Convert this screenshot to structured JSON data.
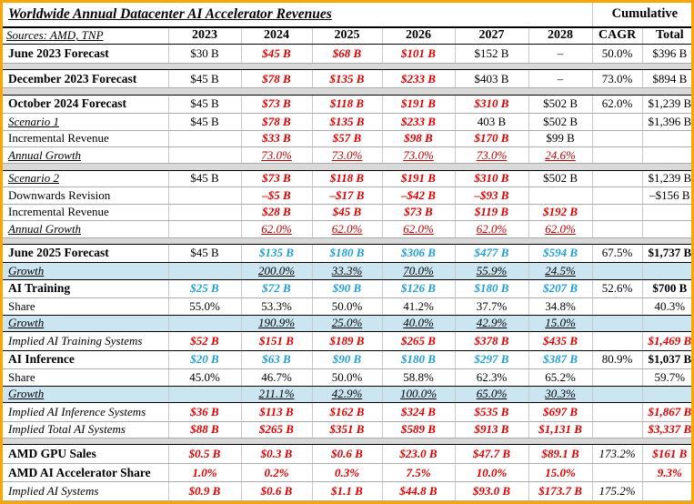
{
  "title": "Worldwide Annual Datacenter AI Accelerator Revenues",
  "cumulative_label": "Cumulative",
  "sources_label": "Sources: AMD, TNP",
  "columns": [
    "2023",
    "2024",
    "2025",
    "2026",
    "2027",
    "2028",
    "CAGR",
    "Total"
  ],
  "colors": {
    "frame_orange": "#F9A602",
    "red_value": "#DD0000",
    "dark_red_growth": "#C00000",
    "blue_value": "#219FD7",
    "blue_row_bg": "#CBE5F1",
    "separator_bg": "#D9D9D9"
  },
  "rows": [
    {
      "label": "June 2023 Forecast",
      "ls": "b",
      "cls": "big",
      "cells": [
        {
          "t": "$30 B",
          "s": "k"
        },
        {
          "t": "$45 B",
          "s": "r"
        },
        {
          "t": "$68 B",
          "s": "r"
        },
        {
          "t": "$101 B",
          "s": "r"
        },
        {
          "t": "$152 B",
          "s": "k"
        },
        {
          "t": "–",
          "s": "k"
        },
        {
          "t": "50.0%",
          "s": "k"
        },
        {
          "t": "$396 B",
          "s": "k"
        }
      ]
    },
    {
      "type": "sep"
    },
    {
      "label": "December 2023 Forecast",
      "ls": "b",
      "cls": "big",
      "cells": [
        {
          "t": "$45 B",
          "s": "k"
        },
        {
          "t": "$78 B",
          "s": "r"
        },
        {
          "t": "$135 B",
          "s": "r"
        },
        {
          "t": "$233 B",
          "s": "r"
        },
        {
          "t": "$403 B",
          "s": "k"
        },
        {
          "t": "–",
          "s": "k"
        },
        {
          "t": "73.0%",
          "s": "k"
        },
        {
          "t": "$894 B",
          "s": "k"
        }
      ]
    },
    {
      "type": "sep"
    },
    {
      "label": "October 2024 Forecast",
      "ls": "b",
      "cls": "big",
      "cells": [
        {
          "t": "$45 B",
          "s": "k"
        },
        {
          "t": "$73 B",
          "s": "r"
        },
        {
          "t": "$118 B",
          "s": "r"
        },
        {
          "t": "$191 B",
          "s": "r"
        },
        {
          "t": "$310 B",
          "s": "r"
        },
        {
          "t": "$502 B",
          "s": "k"
        },
        {
          "t": "62.0%",
          "s": "k"
        },
        {
          "t": "$1,239 B",
          "s": "k"
        }
      ]
    },
    {
      "label": "Scenario 1",
      "ls": "iu",
      "cls": "",
      "cells": [
        {
          "t": "$45 B",
          "s": "k"
        },
        {
          "t": "$78 B",
          "s": "r"
        },
        {
          "t": "$135 B",
          "s": "r"
        },
        {
          "t": "$233 B",
          "s": "r"
        },
        {
          "t": "403 B",
          "s": "k"
        },
        {
          "t": "$502 B",
          "s": "k"
        },
        {
          "t": "",
          "s": "k"
        },
        {
          "t": "$1,396 B",
          "s": "k"
        }
      ]
    },
    {
      "label": "Incremental Revenue",
      "ls": "p",
      "cls": "",
      "cells": [
        {
          "t": "",
          "s": "k"
        },
        {
          "t": "$33 B",
          "s": "r"
        },
        {
          "t": "$57 B",
          "s": "r"
        },
        {
          "t": "$98 B",
          "s": "r"
        },
        {
          "t": "$170 B",
          "s": "r"
        },
        {
          "t": "$99 B",
          "s": "k"
        },
        {
          "t": "",
          "s": "k"
        },
        {
          "t": "",
          "s": "k"
        }
      ]
    },
    {
      "label": "Annual Growth",
      "ls": "iu",
      "cls": "",
      "cells": [
        {
          "t": "",
          "s": "k"
        },
        {
          "t": "73.0%",
          "s": "dr"
        },
        {
          "t": "73.0%",
          "s": "dr"
        },
        {
          "t": "73.0%",
          "s": "dr"
        },
        {
          "t": "73.0%",
          "s": "dr"
        },
        {
          "t": "24.6%",
          "s": "dr"
        },
        {
          "t": "",
          "s": "k"
        },
        {
          "t": "",
          "s": "k"
        }
      ]
    },
    {
      "type": "sep"
    },
    {
      "label": "Scenario 2",
      "ls": "iu",
      "cls": "",
      "cells": [
        {
          "t": "$45 B",
          "s": "k"
        },
        {
          "t": "$73 B",
          "s": "r"
        },
        {
          "t": "$118 B",
          "s": "r"
        },
        {
          "t": "$191 B",
          "s": "r"
        },
        {
          "t": "$310 B",
          "s": "r"
        },
        {
          "t": "$502 B",
          "s": "k"
        },
        {
          "t": "",
          "s": "k"
        },
        {
          "t": "$1,239 B",
          "s": "k"
        }
      ]
    },
    {
      "label": "Downwards Revision",
      "ls": "p",
      "cls": "",
      "cells": [
        {
          "t": "",
          "s": "k"
        },
        {
          "t": "–$5 B",
          "s": "r"
        },
        {
          "t": "–$17 B",
          "s": "r"
        },
        {
          "t": "–$42 B",
          "s": "r"
        },
        {
          "t": "–$93 B",
          "s": "r"
        },
        {
          "t": "",
          "s": "k"
        },
        {
          "t": "",
          "s": "k"
        },
        {
          "t": "–$156 B",
          "s": "k"
        }
      ]
    },
    {
      "label": "Incremental Revenue",
      "ls": "p",
      "cls": "",
      "cells": [
        {
          "t": "",
          "s": "k"
        },
        {
          "t": "$28 B",
          "s": "r"
        },
        {
          "t": "$45 B",
          "s": "r"
        },
        {
          "t": "$73 B",
          "s": "r"
        },
        {
          "t": "$119 B",
          "s": "r"
        },
        {
          "t": "$192 B",
          "s": "r"
        },
        {
          "t": "",
          "s": "k"
        },
        {
          "t": "",
          "s": "k"
        }
      ]
    },
    {
      "label": "Annual Growth",
      "ls": "iu",
      "cls": "",
      "cells": [
        {
          "t": "",
          "s": "k"
        },
        {
          "t": "62.0%",
          "s": "dr"
        },
        {
          "t": "62.0%",
          "s": "dr"
        },
        {
          "t": "62.0%",
          "s": "dr"
        },
        {
          "t": "62.0%",
          "s": "dr"
        },
        {
          "t": "62.0%",
          "s": "dr"
        },
        {
          "t": "",
          "s": "k"
        },
        {
          "t": "",
          "s": "k"
        }
      ]
    },
    {
      "type": "sep"
    },
    {
      "label": "June 2025 Forecast",
      "ls": "b",
      "cls": "big bb",
      "cells": [
        {
          "t": "$45 B",
          "s": "k"
        },
        {
          "t": "$135 B",
          "s": "c"
        },
        {
          "t": "$180 B",
          "s": "c"
        },
        {
          "t": "$306 B",
          "s": "c"
        },
        {
          "t": "$477 B",
          "s": "c"
        },
        {
          "t": "$594 B",
          "s": "c"
        },
        {
          "t": "67.5%",
          "s": "k"
        },
        {
          "t": "$1,737 B",
          "s": "kb"
        }
      ]
    },
    {
      "label": "Growth",
      "ls": "iu",
      "cls": "blue bb",
      "cells": [
        {
          "t": "",
          "s": "k"
        },
        {
          "t": "200.0%",
          "s": "gu"
        },
        {
          "t": "33.3%",
          "s": "gu"
        },
        {
          "t": "70.0%",
          "s": "gu"
        },
        {
          "t": "55.9%",
          "s": "gu"
        },
        {
          "t": "24.5%",
          "s": "gu"
        },
        {
          "t": "",
          "s": "k"
        },
        {
          "t": "",
          "s": "k"
        }
      ]
    },
    {
      "label": "AI Training",
      "ls": "b",
      "cls": "big",
      "cells": [
        {
          "t": "$25 B",
          "s": "c"
        },
        {
          "t": "$72 B",
          "s": "c"
        },
        {
          "t": "$90 B",
          "s": "c"
        },
        {
          "t": "$126 B",
          "s": "c"
        },
        {
          "t": "$180 B",
          "s": "c"
        },
        {
          "t": "$207 B",
          "s": "c"
        },
        {
          "t": "52.6%",
          "s": "k"
        },
        {
          "t": "$700 B",
          "s": "kb"
        }
      ]
    },
    {
      "label": "Share",
      "ls": "p",
      "cls": "bb",
      "cells": [
        {
          "t": "55.0%",
          "s": "k"
        },
        {
          "t": "53.3%",
          "s": "k"
        },
        {
          "t": "50.0%",
          "s": "k"
        },
        {
          "t": "41.2%",
          "s": "k"
        },
        {
          "t": "37.7%",
          "s": "k"
        },
        {
          "t": "34.8%",
          "s": "k"
        },
        {
          "t": "",
          "s": "k"
        },
        {
          "t": "40.3%",
          "s": "k"
        }
      ]
    },
    {
      "label": "Growth",
      "ls": "iu",
      "cls": "blue bb",
      "cells": [
        {
          "t": "",
          "s": "k"
        },
        {
          "t": "190.9%",
          "s": "gu"
        },
        {
          "t": "25.0%",
          "s": "gu"
        },
        {
          "t": "40.0%",
          "s": "gu"
        },
        {
          "t": "42.9%",
          "s": "gu"
        },
        {
          "t": "15.0%",
          "s": "gu"
        },
        {
          "t": "",
          "s": "k"
        },
        {
          "t": "",
          "s": "k"
        }
      ]
    },
    {
      "label": "Implied AI Training Systems",
      "ls": "i",
      "cls": "big bb",
      "cells": [
        {
          "t": "$52 B",
          "s": "r"
        },
        {
          "t": "$151 B",
          "s": "r"
        },
        {
          "t": "$189 B",
          "s": "r"
        },
        {
          "t": "$265 B",
          "s": "r"
        },
        {
          "t": "$378 B",
          "s": "r"
        },
        {
          "t": "$435 B",
          "s": "r"
        },
        {
          "t": "",
          "s": "k"
        },
        {
          "t": "$1,469 B",
          "s": "r"
        }
      ]
    },
    {
      "label": "AI Inference",
      "ls": "b",
      "cls": "big",
      "cells": [
        {
          "t": "$20 B",
          "s": "c"
        },
        {
          "t": "$63 B",
          "s": "c"
        },
        {
          "t": "$90 B",
          "s": "c"
        },
        {
          "t": "$180 B",
          "s": "c"
        },
        {
          "t": "$297 B",
          "s": "c"
        },
        {
          "t": "$387 B",
          "s": "c"
        },
        {
          "t": "80.9%",
          "s": "k"
        },
        {
          "t": "$1,037 B",
          "s": "kb"
        }
      ]
    },
    {
      "label": "Share",
      "ls": "p",
      "cls": "bb",
      "cells": [
        {
          "t": "45.0%",
          "s": "k"
        },
        {
          "t": "46.7%",
          "s": "k"
        },
        {
          "t": "50.0%",
          "s": "k"
        },
        {
          "t": "58.8%",
          "s": "k"
        },
        {
          "t": "62.3%",
          "s": "k"
        },
        {
          "t": "65.2%",
          "s": "k"
        },
        {
          "t": "",
          "s": "k"
        },
        {
          "t": "59.7%",
          "s": "k"
        }
      ]
    },
    {
      "label": "Growth",
      "ls": "iu",
      "cls": "blue bb",
      "cells": [
        {
          "t": "",
          "s": "k"
        },
        {
          "t": "211.1%",
          "s": "gu"
        },
        {
          "t": "42.9%",
          "s": "gu"
        },
        {
          "t": "100.0%",
          "s": "gu"
        },
        {
          "t": "65.0%",
          "s": "gu"
        },
        {
          "t": "30.3%",
          "s": "gu"
        },
        {
          "t": "",
          "s": "k"
        },
        {
          "t": "",
          "s": "k"
        }
      ]
    },
    {
      "label": "Implied AI Inference Systems",
      "ls": "i",
      "cls": "big",
      "cells": [
        {
          "t": "$36 B",
          "s": "r"
        },
        {
          "t": "$113 B",
          "s": "r"
        },
        {
          "t": "$162 B",
          "s": "r"
        },
        {
          "t": "$324 B",
          "s": "r"
        },
        {
          "t": "$535 B",
          "s": "r"
        },
        {
          "t": "$697 B",
          "s": "r"
        },
        {
          "t": "",
          "s": "k"
        },
        {
          "t": "$1,867 B",
          "s": "r"
        }
      ]
    },
    {
      "label": "Implied Total AI Systems",
      "ls": "i",
      "cls": "",
      "cells": [
        {
          "t": "$88 B",
          "s": "r"
        },
        {
          "t": "$265 B",
          "s": "r"
        },
        {
          "t": "$351 B",
          "s": "r"
        },
        {
          "t": "$589 B",
          "s": "r"
        },
        {
          "t": "$913 B",
          "s": "r"
        },
        {
          "t": "$1,131 B",
          "s": "r"
        },
        {
          "t": "",
          "s": "k"
        },
        {
          "t": "$3,337 B",
          "s": "r"
        }
      ]
    },
    {
      "type": "sep"
    },
    {
      "label": "AMD GPU Sales",
      "ls": "b",
      "cls": "big",
      "cells": [
        {
          "t": "$0.5 B",
          "s": "r"
        },
        {
          "t": "$0.3 B",
          "s": "r"
        },
        {
          "t": "$0.6 B",
          "s": "r"
        },
        {
          "t": "$23.0 B",
          "s": "r"
        },
        {
          "t": "$47.7 B",
          "s": "r"
        },
        {
          "t": "$89.1 B",
          "s": "r"
        },
        {
          "t": "173.2%",
          "s": "ki"
        },
        {
          "t": "$161 B",
          "s": "r"
        }
      ]
    },
    {
      "label": "AMD AI Accelerator Share",
      "ls": "b",
      "cls": "big",
      "cells": [
        {
          "t": "1.0%",
          "s": "r"
        },
        {
          "t": "0.2%",
          "s": "r"
        },
        {
          "t": "0.3%",
          "s": "r"
        },
        {
          "t": "7.5%",
          "s": "r"
        },
        {
          "t": "10.0%",
          "s": "r"
        },
        {
          "t": "15.0%",
          "s": "r"
        },
        {
          "t": "",
          "s": "k"
        },
        {
          "t": "9.3%",
          "s": "r"
        }
      ]
    },
    {
      "label": "Implied AI Systems",
      "ls": "i",
      "cls": "big",
      "cells": [
        {
          "t": "$0.9 B",
          "s": "r"
        },
        {
          "t": "$0.6 B",
          "s": "r"
        },
        {
          "t": "$1.1 B",
          "s": "r"
        },
        {
          "t": "$44.8 B",
          "s": "r"
        },
        {
          "t": "$93.0 B",
          "s": "r"
        },
        {
          "t": "$173.7 B",
          "s": "r"
        },
        {
          "t": "175.2%",
          "s": "ki"
        },
        {
          "t": "",
          "s": "k"
        }
      ]
    }
  ]
}
